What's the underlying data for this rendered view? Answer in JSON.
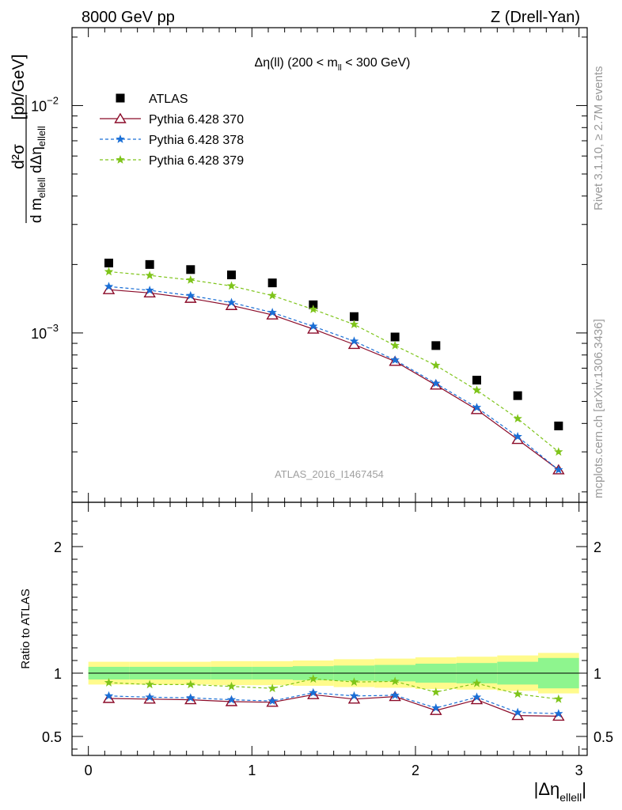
{
  "header": {
    "left": "8000 GeV pp",
    "right": "Z (Drell-Yan)"
  },
  "side_labels": {
    "rivet": "Rivet 3.1.10, ≥ 2.7M events",
    "mcplots": "mcplots.cern.ch [arXiv:1306.3436]"
  },
  "chart_data": {
    "type": "line",
    "title": "Δη(ll) (200 < m_ll < 300 GeV)",
    "title_parts": {
      "pre": "Δη(ll) (200 < m",
      "sub": "ll",
      "post": " < 300 GeV)"
    },
    "analysis_label": "ATLAS_2016_I1467454",
    "xlabel": "|Δη_ellell|",
    "xlabel_parts": {
      "main": "|Δη",
      "sub": "ellell",
      "post": "|"
    },
    "ylabel": "d²σ / d m_ellell dΔη_ellell [pb/GeV]",
    "ylabel_parts": {
      "num": "d²σ",
      "den_pre": "d m",
      "den_sub1": "ellell",
      "den_mid": " dΔη",
      "den_sub2": "ellell",
      "unit": "[pb/GeV]"
    },
    "ratio_ylabel": "Ratio to ATLAS",
    "xlim": [
      -0.1,
      3.05
    ],
    "ylim": [
      0.00018,
      0.022
    ],
    "yscale": "log",
    "ratio_ylim": [
      0.35,
      2.35
    ],
    "x_ticks": [
      "0",
      "1",
      "2",
      "3"
    ],
    "y_ticks": [
      {
        "base": "10",
        "exp": "−2",
        "value": 0.01
      },
      {
        "base": "10",
        "exp": "−3",
        "value": 0.001
      }
    ],
    "ratio_ticks": [
      "0.5",
      "1",
      "2"
    ],
    "legend_position": "top-left",
    "bin_edges": [
      0,
      0.25,
      0.5,
      0.75,
      1.0,
      1.25,
      1.5,
      1.75,
      2.0,
      2.25,
      2.5,
      2.75,
      3.0
    ],
    "x": [
      0.125,
      0.375,
      0.625,
      0.875,
      1.125,
      1.375,
      1.625,
      1.875,
      2.125,
      2.375,
      2.625,
      2.875
    ],
    "series": [
      {
        "name": "ATLAS",
        "marker": "square",
        "color": "#000000",
        "values": [
          0.00203,
          0.002,
          0.0019,
          0.0018,
          0.00166,
          0.00133,
          0.00118,
          0.00096,
          0.00088,
          0.00062,
          0.00053,
          0.00039
        ]
      },
      {
        "name": "Pythia 6.428 370",
        "marker": "triangle-open",
        "color": "#8b0a28",
        "dash": "solid",
        "values": [
          0.00155,
          0.0015,
          0.00142,
          0.00132,
          0.0012,
          0.00104,
          0.00089,
          0.00075,
          0.00059,
          0.00046,
          0.00034,
          0.00025
        ]
      },
      {
        "name": "Pythia 6.428 378",
        "marker": "star",
        "color": "#1a6fd6",
        "dash": "dashed",
        "values": [
          0.0016,
          0.00154,
          0.00146,
          0.00136,
          0.00123,
          0.00107,
          0.00092,
          0.00076,
          0.0006,
          0.00047,
          0.00035,
          0.00025
        ]
      },
      {
        "name": "Pythia 6.428 379",
        "marker": "star",
        "color": "#7ec41a",
        "dash": "dashed",
        "values": [
          0.00186,
          0.00179,
          0.00171,
          0.00161,
          0.00146,
          0.00127,
          0.00109,
          0.00088,
          0.00072,
          0.00056,
          0.00042,
          0.0003
        ]
      }
    ],
    "ratio": {
      "series": [
        {
          "name": "Pythia 6.428 370",
          "values": [
            0.8,
            0.795,
            0.79,
            0.775,
            0.77,
            0.83,
            0.795,
            0.815,
            0.705,
            0.79,
            0.665,
            0.66
          ]
        },
        {
          "name": "Pythia 6.428 378",
          "values": [
            0.82,
            0.81,
            0.805,
            0.79,
            0.78,
            0.845,
            0.82,
            0.825,
            0.725,
            0.81,
            0.69,
            0.68
          ]
        },
        {
          "name": "Pythia 6.428 379",
          "values": [
            0.925,
            0.91,
            0.91,
            0.895,
            0.88,
            0.955,
            0.93,
            0.935,
            0.85,
            0.92,
            0.835,
            0.795
          ]
        }
      ],
      "band_stat": [
        0.05,
        0.05,
        0.05,
        0.05,
        0.05,
        0.055,
        0.06,
        0.065,
        0.075,
        0.08,
        0.09,
        0.12
      ],
      "band_total": [
        0.09,
        0.09,
        0.09,
        0.095,
        0.095,
        0.1,
        0.11,
        0.115,
        0.125,
        0.13,
        0.14,
        0.16
      ],
      "band_colors": {
        "stat": "#8ef58e",
        "total": "#fffb8c"
      }
    }
  }
}
